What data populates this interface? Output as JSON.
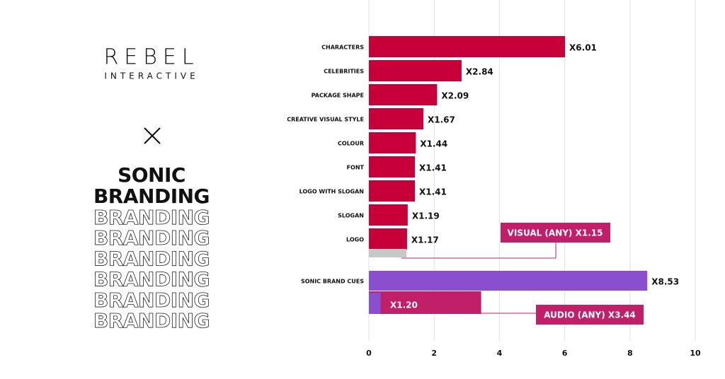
{
  "brand": {
    "logo": "REBEL",
    "subtitle": "INTERACTIVE"
  },
  "headline": [
    "SONIC",
    "BRANDING"
  ],
  "echo": [
    "BRANDING",
    "BRANDING",
    "BRANDING",
    "BRANDING",
    "BRANDING",
    "BRANDING"
  ],
  "chart_data": {
    "type": "bar",
    "orientation": "horizontal",
    "categories": [
      "CHARACTERS",
      "CELEBRITIES",
      "PACKAGE SHAPE",
      "CREATIVE VISUAL STYLE",
      "COLOUR",
      "FONT",
      "LOGO WITH SLOGAN",
      "SLOGAN",
      "LOGO",
      "SONIC BRAND CUES"
    ],
    "values": [
      6.01,
      2.84,
      2.09,
      1.67,
      1.44,
      1.41,
      1.41,
      1.19,
      1.17,
      8.53
    ],
    "value_labels": [
      "X6.01",
      "X2.84",
      "X2.09",
      "X1.67",
      "X1.44",
      "X1.41",
      "X1.41",
      "X1.19",
      "X1.17",
      "X8.53"
    ],
    "colors": [
      "#c8003a",
      "#c8003a",
      "#c8003a",
      "#c8003a",
      "#c8003a",
      "#c8003a",
      "#c8003a",
      "#c8003a",
      "#c8003a",
      "#8a4fcf"
    ],
    "extra_bars": [
      {
        "value": 1.15,
        "color": "#c8c8c8",
        "label": "VISUAL (ANY) X1.15"
      },
      {
        "value": 3.44,
        "color": "#c21f6a",
        "label": "AUDIO (ANY) X3.44"
      },
      {
        "value": 1.2,
        "color": "#8a4fcf",
        "value_label": "X1.20"
      }
    ],
    "xlim": [
      0,
      10
    ],
    "xticks": [
      0,
      2,
      4,
      6,
      8,
      10
    ],
    "grid": true
  }
}
